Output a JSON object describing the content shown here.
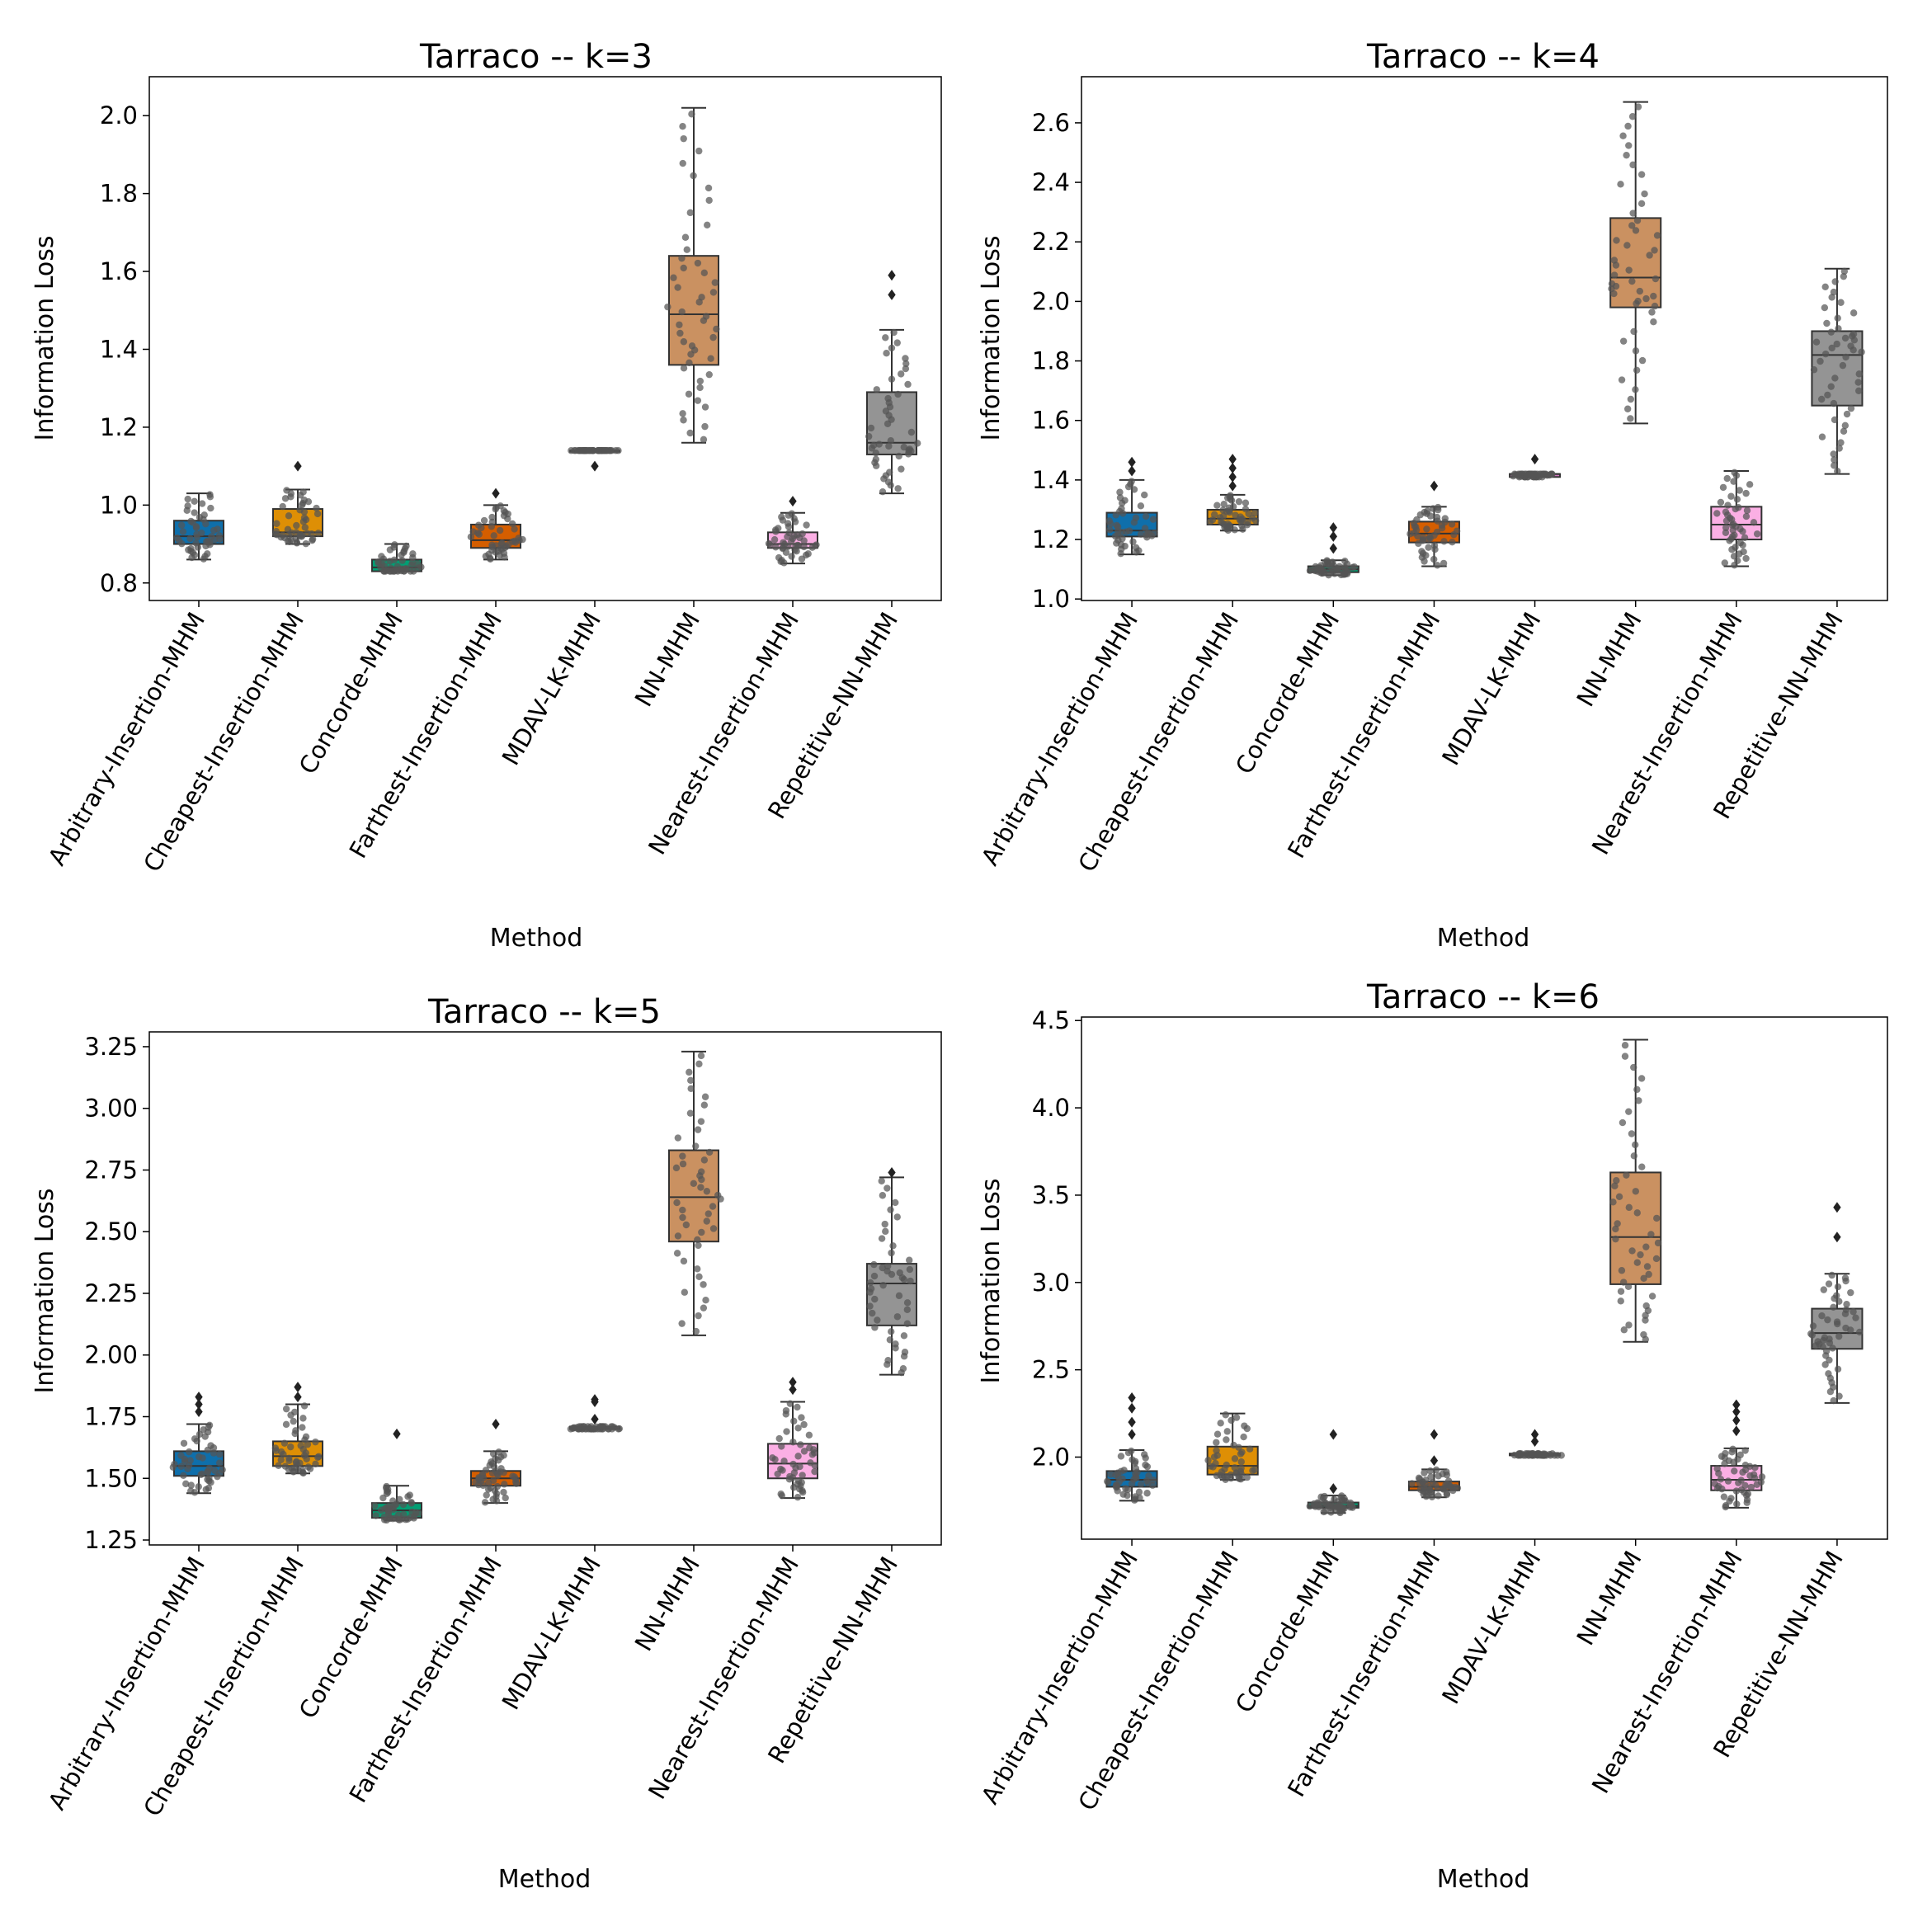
{
  "chart_data": [
    {
      "type": "boxplot",
      "title": "Tarraco -- k=3",
      "xlabel": "Method",
      "ylabel": "Information Loss",
      "ylim": [
        0.755,
        2.1
      ],
      "yticks": [
        0.8,
        1.0,
        1.2,
        1.4,
        1.6,
        1.8,
        2.0
      ],
      "ytick_labels": [
        "0.8",
        "1.0",
        "1.2",
        "1.4",
        "1.6",
        "1.8",
        "2.0"
      ],
      "categories": [
        "Arbitrary-Insertion-MHM",
        "Cheapest-Insertion-MHM",
        "Concorde-MHM",
        "Farthest-Insertion-MHM",
        "MDAV-LK-MHM",
        "NN-MHM",
        "Nearest-Insertion-MHM",
        "Repetitive-NN-MHM"
      ],
      "boxes": [
        {
          "min": 0.86,
          "q1": 0.9,
          "median": 0.92,
          "q3": 0.96,
          "max": 1.03,
          "outliers": []
        },
        {
          "min": 0.9,
          "q1": 0.92,
          "median": 0.93,
          "q3": 0.99,
          "max": 1.04,
          "outliers": [
            1.1
          ]
        },
        {
          "min": 0.83,
          "q1": 0.83,
          "median": 0.84,
          "q3": 0.86,
          "max": 0.9,
          "outliers": []
        },
        {
          "min": 0.86,
          "q1": 0.89,
          "median": 0.91,
          "q3": 0.95,
          "max": 1.0,
          "outliers": [
            1.03
          ]
        },
        {
          "min": 1.14,
          "q1": 1.14,
          "median": 1.14,
          "q3": 1.14,
          "max": 1.14,
          "outliers": [
            1.1
          ]
        },
        {
          "min": 1.16,
          "q1": 1.36,
          "median": 1.49,
          "q3": 1.64,
          "max": 2.02,
          "outliers": []
        },
        {
          "min": 0.85,
          "q1": 0.89,
          "median": 0.9,
          "q3": 0.93,
          "max": 0.98,
          "outliers": [
            1.01
          ]
        },
        {
          "min": 1.03,
          "q1": 1.13,
          "median": 1.16,
          "q3": 1.29,
          "max": 1.45,
          "outliers": [
            1.54,
            1.59
          ]
        }
      ]
    },
    {
      "type": "boxplot",
      "title": "Tarraco -- k=4",
      "xlabel": "Method",
      "ylabel": "Information Loss",
      "ylim": [
        0.995,
        2.755
      ],
      "yticks": [
        1.0,
        1.2,
        1.4,
        1.6,
        1.8,
        2.0,
        2.2,
        2.4,
        2.6
      ],
      "ytick_labels": [
        "1.0",
        "1.2",
        "1.4",
        "1.6",
        "1.8",
        "2.0",
        "2.2",
        "2.4",
        "2.6"
      ],
      "categories": [
        "Arbitrary-Insertion-MHM",
        "Cheapest-Insertion-MHM",
        "Concorde-MHM",
        "Farthest-Insertion-MHM",
        "MDAV-LK-MHM",
        "NN-MHM",
        "Nearest-Insertion-MHM",
        "Repetitive-NN-MHM"
      ],
      "boxes": [
        {
          "min": 1.15,
          "q1": 1.21,
          "median": 1.23,
          "q3": 1.29,
          "max": 1.4,
          "outliers": [
            1.43,
            1.46
          ]
        },
        {
          "min": 1.23,
          "q1": 1.25,
          "median": 1.27,
          "q3": 1.3,
          "max": 1.35,
          "outliers": [
            1.38,
            1.41,
            1.44,
            1.47
          ]
        },
        {
          "min": 1.08,
          "q1": 1.09,
          "median": 1.1,
          "q3": 1.11,
          "max": 1.13,
          "outliers": [
            1.17,
            1.21,
            1.24
          ]
        },
        {
          "min": 1.11,
          "q1": 1.19,
          "median": 1.22,
          "q3": 1.26,
          "max": 1.31,
          "outliers": [
            1.38
          ]
        },
        {
          "min": 1.41,
          "q1": 1.41,
          "median": 1.42,
          "q3": 1.42,
          "max": 1.42,
          "outliers": [
            1.47
          ]
        },
        {
          "min": 1.59,
          "q1": 1.98,
          "median": 2.08,
          "q3": 2.28,
          "max": 2.67,
          "outliers": []
        },
        {
          "min": 1.11,
          "q1": 1.2,
          "median": 1.25,
          "q3": 1.31,
          "max": 1.43,
          "outliers": []
        },
        {
          "min": 1.42,
          "q1": 1.65,
          "median": 1.82,
          "q3": 1.9,
          "max": 2.11,
          "outliers": []
        }
      ]
    },
    {
      "type": "boxplot",
      "title": "Tarraco -- k=5",
      "xlabel": "Method",
      "ylabel": "Information Loss",
      "ylim": [
        1.23,
        3.31
      ],
      "yticks": [
        1.25,
        1.5,
        1.75,
        2.0,
        2.25,
        2.5,
        2.75,
        3.0,
        3.25
      ],
      "ytick_labels": [
        "1.25",
        "1.50",
        "1.75",
        "2.00",
        "2.25",
        "2.50",
        "2.75",
        "3.00",
        "3.25"
      ],
      "categories": [
        "Arbitrary-Insertion-MHM",
        "Cheapest-Insertion-MHM",
        "Concorde-MHM",
        "Farthest-Insertion-MHM",
        "MDAV-LK-MHM",
        "NN-MHM",
        "Nearest-Insertion-MHM",
        "Repetitive-NN-MHM"
      ],
      "boxes": [
        {
          "min": 1.44,
          "q1": 1.51,
          "median": 1.55,
          "q3": 1.61,
          "max": 1.72,
          "outliers": [
            1.77,
            1.8,
            1.83
          ]
        },
        {
          "min": 1.52,
          "q1": 1.55,
          "median": 1.59,
          "q3": 1.65,
          "max": 1.8,
          "outliers": [
            1.83,
            1.87
          ]
        },
        {
          "min": 1.33,
          "q1": 1.34,
          "median": 1.37,
          "q3": 1.4,
          "max": 1.47,
          "outliers": [
            1.68
          ]
        },
        {
          "min": 1.4,
          "q1": 1.47,
          "median": 1.5,
          "q3": 1.53,
          "max": 1.61,
          "outliers": [
            1.72
          ]
        },
        {
          "min": 1.7,
          "q1": 1.7,
          "median": 1.7,
          "q3": 1.71,
          "max": 1.71,
          "outliers": [
            1.74,
            1.81,
            1.82
          ]
        },
        {
          "min": 2.08,
          "q1": 2.46,
          "median": 2.64,
          "q3": 2.83,
          "max": 3.23,
          "outliers": []
        },
        {
          "min": 1.42,
          "q1": 1.5,
          "median": 1.56,
          "q3": 1.64,
          "max": 1.81,
          "outliers": [
            1.86,
            1.89
          ]
        },
        {
          "min": 1.92,
          "q1": 2.12,
          "median": 2.29,
          "q3": 2.37,
          "max": 2.72,
          "outliers": [
            2.74
          ]
        }
      ]
    },
    {
      "type": "boxplot",
      "title": "Tarraco -- k=6",
      "xlabel": "Method",
      "ylabel": "Information Loss",
      "ylim": [
        1.53,
        4.52
      ],
      "yticks": [
        2.0,
        2.5,
        3.0,
        3.5,
        4.0,
        4.5
      ],
      "ytick_labels": [
        "2.0",
        "2.5",
        "3.0",
        "3.5",
        "4.0",
        "4.5"
      ],
      "categories": [
        "Arbitrary-Insertion-MHM",
        "Cheapest-Insertion-MHM",
        "Concorde-MHM",
        "Farthest-Insertion-MHM",
        "MDAV-LK-MHM",
        "NN-MHM",
        "Nearest-Insertion-MHM",
        "Repetitive-NN-MHM"
      ],
      "boxes": [
        {
          "min": 1.75,
          "q1": 1.83,
          "median": 1.87,
          "q3": 1.92,
          "max": 2.04,
          "outliers": [
            2.13,
            2.2,
            2.28,
            2.34
          ]
        },
        {
          "min": 1.87,
          "q1": 1.9,
          "median": 1.95,
          "q3": 2.06,
          "max": 2.25,
          "outliers": []
        },
        {
          "min": 1.68,
          "q1": 1.71,
          "median": 1.72,
          "q3": 1.74,
          "max": 1.78,
          "outliers": [
            1.82,
            2.13
          ]
        },
        {
          "min": 1.77,
          "q1": 1.81,
          "median": 1.83,
          "q3": 1.86,
          "max": 1.93,
          "outliers": [
            1.98,
            2.13
          ]
        },
        {
          "min": 2.01,
          "q1": 2.01,
          "median": 2.01,
          "q3": 2.02,
          "max": 2.02,
          "outliers": [
            2.09,
            2.13
          ]
        },
        {
          "min": 2.66,
          "q1": 2.99,
          "median": 3.26,
          "q3": 3.63,
          "max": 4.39,
          "outliers": []
        },
        {
          "min": 1.71,
          "q1": 1.81,
          "median": 1.87,
          "q3": 1.95,
          "max": 2.05,
          "outliers": [
            2.15,
            2.21,
            2.26,
            2.3
          ]
        },
        {
          "min": 2.31,
          "q1": 2.62,
          "median": 2.71,
          "q3": 2.85,
          "max": 3.05,
          "outliers": [
            3.26,
            3.43
          ]
        }
      ]
    }
  ],
  "palette": [
    "#0f6fab",
    "#de8f05",
    "#029e73",
    "#d55e00",
    "#cc78bc",
    "#ca9161",
    "#fbafe4",
    "#949494"
  ],
  "style": {
    "box_edge": "#333333",
    "swarm_dot": "#555555",
    "axis_color": "#000000"
  }
}
